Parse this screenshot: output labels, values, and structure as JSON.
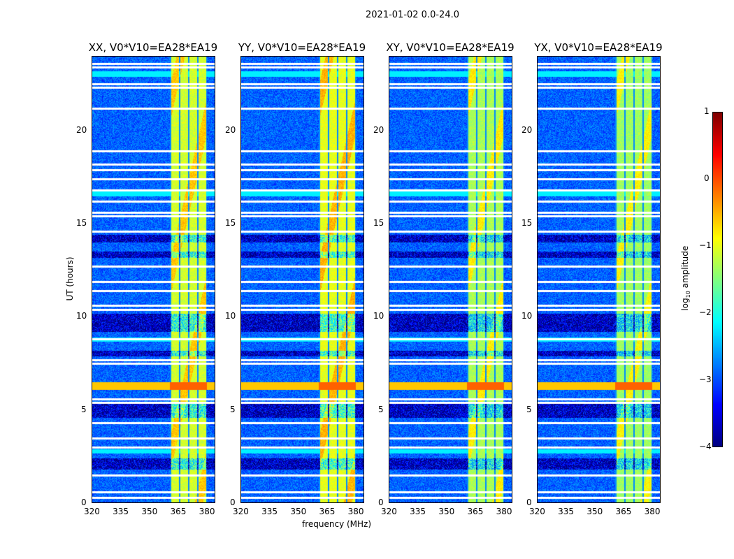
{
  "chart_data": {
    "type": "heatmap",
    "title": "2021-01-02 0.0-24.0",
    "xlabel": "frequency (MHz)",
    "ylabel": "UT (hours)",
    "xlim": [
      320,
      384.5
    ],
    "ylim": [
      0,
      24
    ],
    "xticks": [
      "320",
      "335",
      "350",
      "365",
      "380"
    ],
    "xtick_values": [
      320,
      335,
      350,
      365,
      380
    ],
    "yticks": [
      "0",
      "5",
      "10",
      "15",
      "20"
    ],
    "ytick_values": [
      0,
      5,
      10,
      15,
      20
    ],
    "panels": [
      {
        "title": "XX, V0*V10=EA28*EA19",
        "band_level": -1.1
      },
      {
        "title": "YY, V0*V10=EA28*EA19",
        "band_level": -1.0
      },
      {
        "title": "XY, V0*V10=EA28*EA19",
        "band_level": -1.3
      },
      {
        "title": "YX, V0*V10=EA28*EA19",
        "band_level": -1.35
      }
    ],
    "background_level": -2.9,
    "strong_band_mhz": [
      360.7,
      380
    ],
    "flagged_hours": [
      23.6,
      23.4,
      22.5,
      22.3,
      21.2,
      18.9,
      18.2,
      17.9,
      17.4,
      16.8,
      16.2,
      15.6,
      15.4,
      14.6,
      12.7,
      11.9,
      11.4,
      10.6,
      10.4,
      8.8,
      7.7,
      7.5,
      5.6,
      5.4,
      4.3,
      3.5,
      3.0,
      1.5,
      0.6,
      0.3
    ],
    "dark_hour_ranges": [
      [
        14.0,
        14.4
      ],
      [
        13.2,
        13.5
      ],
      [
        9.2,
        10.2
      ],
      [
        4.6,
        5.4
      ],
      [
        1.8,
        2.4
      ],
      [
        7.9,
        8.2
      ]
    ],
    "rfi_hour_ranges": [
      [
        6.1,
        6.5
      ]
    ],
    "cyan_hour_ranges": [
      [
        2.7,
        2.9
      ],
      [
        16.5,
        16.8
      ],
      [
        22.9,
        23.2
      ],
      [
        8.7,
        8.9
      ]
    ],
    "colorbar": {
      "label": "log10 amplitude",
      "label_main": "log",
      "label_sub": "10",
      "label_rest": " amplitude",
      "range": [
        -4,
        1
      ],
      "ticks": [
        "1",
        "0",
        "−1",
        "−2",
        "−3",
        "−4"
      ],
      "tick_values": [
        1,
        0,
        -1,
        -2,
        -3,
        -4
      ],
      "colormap": "jet"
    }
  }
}
